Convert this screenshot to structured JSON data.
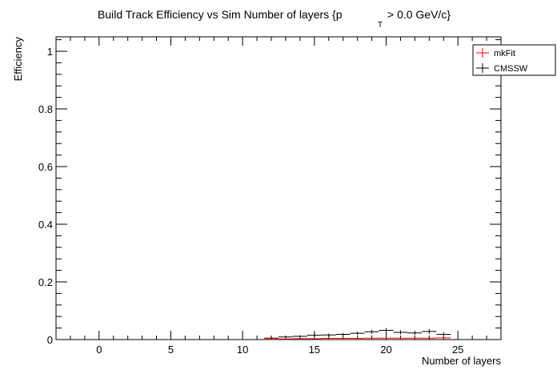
{
  "chart_data": {
    "type": "scatter",
    "title": {
      "main": "Build Track Efficiency vs Sim Number of layers {p",
      "sub": "T",
      "rest": "> 0.0 GeV/c}"
    },
    "xlabel": "Number of layers",
    "ylabel": "Efficiency",
    "xlim": [
      -3,
      28
    ],
    "ylim": [
      0,
      1.05
    ],
    "x_ticks": [
      0,
      5,
      10,
      15,
      20,
      25
    ],
    "x_tick_labels": [
      "0",
      "5",
      "10",
      "15",
      "20",
      "25"
    ],
    "y_ticks": [
      0,
      0.2,
      0.4,
      0.6,
      0.8,
      1
    ],
    "y_tick_labels": [
      "0",
      "0.2",
      "0.4",
      "0.6",
      "0.8",
      "1"
    ],
    "legend_position": "top-right",
    "series": [
      {
        "name": "mkFit",
        "color": "#ff0000",
        "x": [
          12,
          13,
          14,
          15,
          16,
          17,
          18,
          19,
          20,
          21,
          22,
          23,
          24
        ],
        "y": [
          0.001,
          0.002,
          0.003,
          0.003,
          0.004,
          0.004,
          0.004,
          0.005,
          0.005,
          0.005,
          0.005,
          0.005,
          0.006
        ],
        "err": [
          0.001,
          0.002,
          0.002,
          0.002,
          0.002,
          0.002,
          0.003,
          0.003,
          0.003,
          0.003,
          0.003,
          0.003,
          0.004
        ]
      },
      {
        "name": "CMSSW",
        "color": "#000000",
        "x": [
          12,
          13,
          14,
          15,
          16,
          17,
          18,
          19,
          20,
          21,
          22,
          23,
          24
        ],
        "y": [
          0.005,
          0.009,
          0.011,
          0.015,
          0.016,
          0.018,
          0.022,
          0.027,
          0.032,
          0.025,
          0.023,
          0.028,
          0.018
        ],
        "err": [
          0.003,
          0.004,
          0.004,
          0.005,
          0.005,
          0.005,
          0.006,
          0.007,
          0.008,
          0.007,
          0.007,
          0.008,
          0.007
        ]
      }
    ]
  }
}
